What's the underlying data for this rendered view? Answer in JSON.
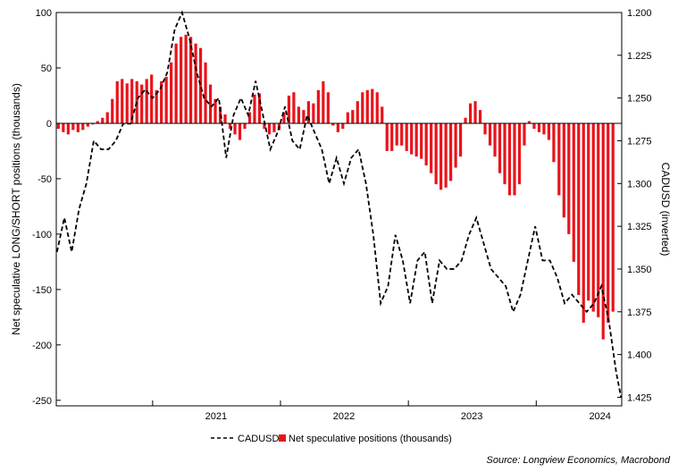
{
  "chart_data": {
    "type": "bar+line",
    "left_axis": {
      "label": "Net speculative LONG/SHORT positions (thousands)",
      "ylim": [
        -255,
        100
      ],
      "ticks": [
        100,
        50,
        0,
        -50,
        -100,
        -150,
        -200,
        -250
      ],
      "tick_labels": [
        "100",
        "50",
        "0",
        "-50",
        "-100",
        "-150",
        "-200",
        "-250"
      ]
    },
    "right_axis": {
      "label": "CADUSD (inverted)",
      "inverted": true,
      "ylim": [
        1.2,
        1.43
      ],
      "ticks": [
        1.2,
        1.225,
        1.25,
        1.275,
        1.3,
        1.325,
        1.35,
        1.375,
        1.4,
        1.425
      ],
      "tick_labels": [
        "1.200",
        "1.225",
        "1.250",
        "1.275",
        "1.300",
        "1.325",
        "1.350",
        "1.375",
        "1.400",
        "1.425"
      ]
    },
    "x_axis": {
      "range": [
        "2020-04-01",
        "2024-09-01"
      ],
      "year_labels": [
        "2021",
        "2022",
        "2023",
        "2024"
      ]
    },
    "legend": {
      "placement": "bottom-center",
      "items": [
        "CADUSD",
        "Net speculative positions (thousands)"
      ]
    },
    "source": "Source: Longview Economics, Macrobond",
    "colors": {
      "bars": "#e8141b",
      "line": "#000000",
      "axis": "#000000"
    },
    "series": [
      {
        "name": "Net speculative positions (thousands)",
        "type": "bar",
        "axis": "left",
        "points": [
          [
            "2020-04-07",
            -5
          ],
          [
            "2020-04-21",
            -8
          ],
          [
            "2020-05-05",
            -10
          ],
          [
            "2020-05-19",
            -6
          ],
          [
            "2020-06-02",
            -8
          ],
          [
            "2020-06-16",
            -6
          ],
          [
            "2020-06-30",
            -3
          ],
          [
            "2020-07-14",
            -1
          ],
          [
            "2020-07-28",
            2
          ],
          [
            "2020-08-11",
            5
          ],
          [
            "2020-08-25",
            10
          ],
          [
            "2020-09-08",
            22
          ],
          [
            "2020-09-22",
            38
          ],
          [
            "2020-10-06",
            40
          ],
          [
            "2020-10-20",
            36
          ],
          [
            "2020-11-03",
            40
          ],
          [
            "2020-11-17",
            38
          ],
          [
            "2020-12-01",
            35
          ],
          [
            "2020-12-15",
            40
          ],
          [
            "2020-12-29",
            44
          ],
          [
            "2021-01-12",
            30
          ],
          [
            "2021-01-26",
            38
          ],
          [
            "2021-02-09",
            42
          ],
          [
            "2021-02-23",
            55
          ],
          [
            "2021-03-09",
            72
          ],
          [
            "2021-03-23",
            78
          ],
          [
            "2021-04-06",
            80
          ],
          [
            "2021-04-20",
            78
          ],
          [
            "2021-05-04",
            72
          ],
          [
            "2021-05-18",
            68
          ],
          [
            "2021-06-01",
            55
          ],
          [
            "2021-06-15",
            35
          ],
          [
            "2021-06-29",
            22
          ],
          [
            "2021-07-13",
            15
          ],
          [
            "2021-07-27",
            8
          ],
          [
            "2021-08-10",
            -5
          ],
          [
            "2021-08-24",
            -10
          ],
          [
            "2021-09-07",
            -15
          ],
          [
            "2021-09-21",
            -5
          ],
          [
            "2021-10-05",
            10
          ],
          [
            "2021-10-19",
            26
          ],
          [
            "2021-11-02",
            27
          ],
          [
            "2021-11-16",
            -5
          ],
          [
            "2021-11-30",
            -10
          ],
          [
            "2021-12-14",
            -8
          ],
          [
            "2021-12-28",
            -6
          ],
          [
            "2022-01-11",
            10
          ],
          [
            "2022-01-25",
            25
          ],
          [
            "2022-02-08",
            28
          ],
          [
            "2022-02-22",
            15
          ],
          [
            "2022-03-08",
            12
          ],
          [
            "2022-03-22",
            20
          ],
          [
            "2022-04-05",
            18
          ],
          [
            "2022-04-19",
            30
          ],
          [
            "2022-05-03",
            38
          ],
          [
            "2022-05-17",
            28
          ],
          [
            "2022-05-31",
            -2
          ],
          [
            "2022-06-14",
            -8
          ],
          [
            "2022-06-28",
            -5
          ],
          [
            "2022-07-12",
            10
          ],
          [
            "2022-07-26",
            12
          ],
          [
            "2022-08-09",
            20
          ],
          [
            "2022-08-23",
            28
          ],
          [
            "2022-09-06",
            30
          ],
          [
            "2022-09-20",
            31
          ],
          [
            "2022-10-04",
            28
          ],
          [
            "2022-10-18",
            15
          ],
          [
            "2022-11-01",
            -25
          ],
          [
            "2022-11-15",
            -25
          ],
          [
            "2022-11-29",
            -20
          ],
          [
            "2022-12-13",
            -20
          ],
          [
            "2022-12-27",
            -25
          ],
          [
            "2023-01-10",
            -28
          ],
          [
            "2023-01-24",
            -30
          ],
          [
            "2023-02-07",
            -32
          ],
          [
            "2023-02-21",
            -38
          ],
          [
            "2023-03-07",
            -45
          ],
          [
            "2023-03-21",
            -55
          ],
          [
            "2023-04-04",
            -60
          ],
          [
            "2023-04-18",
            -58
          ],
          [
            "2023-05-02",
            -52
          ],
          [
            "2023-05-16",
            -40
          ],
          [
            "2023-05-30",
            -30
          ],
          [
            "2023-06-13",
            5
          ],
          [
            "2023-06-27",
            18
          ],
          [
            "2023-07-11",
            20
          ],
          [
            "2023-07-25",
            12
          ],
          [
            "2023-08-08",
            -10
          ],
          [
            "2023-08-22",
            -20
          ],
          [
            "2023-09-05",
            -30
          ],
          [
            "2023-09-19",
            -45
          ],
          [
            "2023-10-03",
            -55
          ],
          [
            "2023-10-17",
            -65
          ],
          [
            "2023-10-31",
            -65
          ],
          [
            "2023-11-14",
            -55
          ],
          [
            "2023-11-28",
            -20
          ],
          [
            "2023-12-12",
            2
          ],
          [
            "2023-12-26",
            -5
          ],
          [
            "2024-01-09",
            -8
          ],
          [
            "2024-01-23",
            -10
          ],
          [
            "2024-02-06",
            -15
          ],
          [
            "2024-02-20",
            -35
          ],
          [
            "2024-03-06",
            -65
          ],
          [
            "2024-03-20",
            -85
          ],
          [
            "2024-04-03",
            -100
          ],
          [
            "2024-04-17",
            -125
          ],
          [
            "2024-05-01",
            -155
          ],
          [
            "2024-05-15",
            -180
          ],
          [
            "2024-05-29",
            -160
          ],
          [
            "2024-06-12",
            -170
          ],
          [
            "2024-06-26",
            -175
          ],
          [
            "2024-07-10",
            -195
          ],
          [
            "2024-07-24",
            -180
          ],
          [
            "2024-08-07",
            -170
          ]
        ]
      },
      {
        "name": "CADUSD",
        "type": "line",
        "style": "dashed",
        "axis": "right",
        "points": [
          [
            "2020-04-03",
            1.34
          ],
          [
            "2020-04-24",
            1.32
          ],
          [
            "2020-05-15",
            1.34
          ],
          [
            "2020-06-05",
            1.315
          ],
          [
            "2020-06-26",
            1.3
          ],
          [
            "2020-07-17",
            1.275
          ],
          [
            "2020-08-07",
            1.28
          ],
          [
            "2020-08-28",
            1.28
          ],
          [
            "2020-09-18",
            1.275
          ],
          [
            "2020-10-09",
            1.265
          ],
          [
            "2020-10-30",
            1.265
          ],
          [
            "2020-11-20",
            1.25
          ],
          [
            "2020-12-11",
            1.245
          ],
          [
            "2021-01-01",
            1.25
          ],
          [
            "2021-01-22",
            1.245
          ],
          [
            "2021-02-12",
            1.235
          ],
          [
            "2021-03-05",
            1.21
          ],
          [
            "2021-03-26",
            1.2
          ],
          [
            "2021-04-16",
            1.215
          ],
          [
            "2021-05-07",
            1.235
          ],
          [
            "2021-05-28",
            1.25
          ],
          [
            "2021-06-18",
            1.255
          ],
          [
            "2021-07-09",
            1.25
          ],
          [
            "2021-07-30",
            1.285
          ],
          [
            "2021-08-20",
            1.26
          ],
          [
            "2021-09-10",
            1.25
          ],
          [
            "2021-10-01",
            1.26
          ],
          [
            "2021-10-22",
            1.24
          ],
          [
            "2021-11-12",
            1.26
          ],
          [
            "2021-12-03",
            1.28
          ],
          [
            "2021-12-24",
            1.27
          ],
          [
            "2022-01-14",
            1.255
          ],
          [
            "2022-02-04",
            1.275
          ],
          [
            "2022-02-25",
            1.28
          ],
          [
            "2022-03-18",
            1.26
          ],
          [
            "2022-04-08",
            1.27
          ],
          [
            "2022-04-29",
            1.28
          ],
          [
            "2022-05-20",
            1.3
          ],
          [
            "2022-06-10",
            1.285
          ],
          [
            "2022-07-01",
            1.3
          ],
          [
            "2022-07-22",
            1.285
          ],
          [
            "2022-08-12",
            1.28
          ],
          [
            "2022-09-02",
            1.3
          ],
          [
            "2022-09-23",
            1.33
          ],
          [
            "2022-10-14",
            1.37
          ],
          [
            "2022-11-04",
            1.36
          ],
          [
            "2022-11-25",
            1.33
          ],
          [
            "2022-12-16",
            1.345
          ],
          [
            "2023-01-06",
            1.37
          ],
          [
            "2023-01-27",
            1.345
          ],
          [
            "2023-02-17",
            1.34
          ],
          [
            "2023-03-10",
            1.37
          ],
          [
            "2023-03-31",
            1.345
          ],
          [
            "2023-04-21",
            1.35
          ],
          [
            "2023-05-12",
            1.35
          ],
          [
            "2023-06-02",
            1.345
          ],
          [
            "2023-06-23",
            1.33
          ],
          [
            "2023-07-14",
            1.32
          ],
          [
            "2023-08-04",
            1.335
          ],
          [
            "2023-08-25",
            1.35
          ],
          [
            "2023-09-15",
            1.355
          ],
          [
            "2023-10-06",
            1.36
          ],
          [
            "2023-10-27",
            1.375
          ],
          [
            "2023-11-17",
            1.365
          ],
          [
            "2023-12-08",
            1.345
          ],
          [
            "2023-12-29",
            1.325
          ],
          [
            "2024-01-19",
            1.345
          ],
          [
            "2024-02-09",
            1.345
          ],
          [
            "2024-03-01",
            1.355
          ],
          [
            "2024-03-22",
            1.37
          ],
          [
            "2024-04-12",
            1.365
          ],
          [
            "2024-05-03",
            1.37
          ],
          [
            "2024-05-24",
            1.375
          ],
          [
            "2024-06-14",
            1.37
          ],
          [
            "2024-07-05",
            1.36
          ],
          [
            "2024-07-26",
            1.38
          ],
          [
            "2024-08-16",
            1.41
          ],
          [
            "2024-08-30",
            1.425
          ]
        ]
      }
    ]
  }
}
